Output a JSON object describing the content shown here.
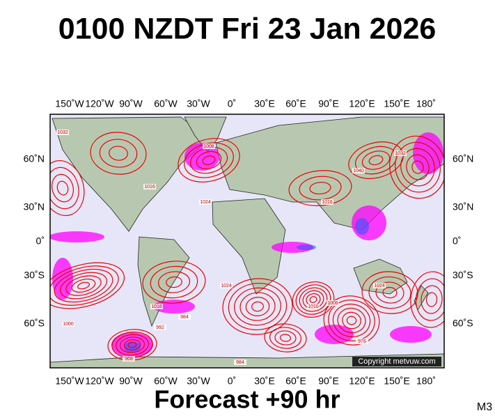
{
  "title": "0100 NZDT Fri 23 Jan 2026",
  "longitude_labels": [
    "150˚W",
    "120˚W",
    "90˚W",
    "60˚W",
    "30˚W",
    "0˚",
    "30˚E",
    "60˚E",
    "90˚E",
    "120˚E",
    "150˚E",
    "180˚"
  ],
  "latitude_labels": [
    "60˚N",
    "30˚N",
    "0˚",
    "30˚S",
    "60˚S"
  ],
  "isobar_labels": [
    "1032",
    "1008",
    "1024",
    "1016",
    "1040",
    "1032",
    "1016",
    "1024",
    "1016",
    "1000",
    "992",
    "984",
    "976",
    "968",
    "1016",
    "1008",
    "1024",
    "984"
  ],
  "copyright": "Copyright metvuw.com",
  "forecast": "Forecast +90 hr",
  "model": "M3"
}
